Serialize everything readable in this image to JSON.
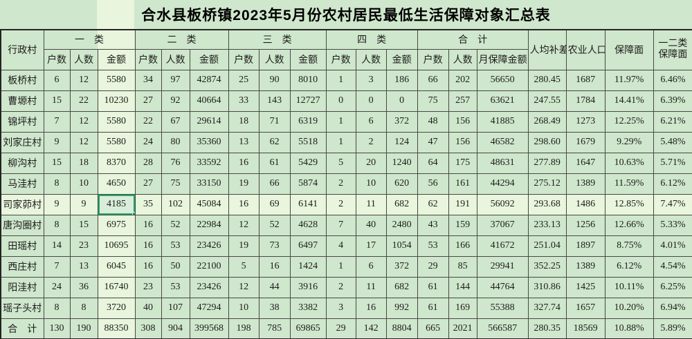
{
  "title": "合水县板桥镇2023年5月份农村居民最低生活保障对象汇总表",
  "header": {
    "village": "行政村",
    "groups": [
      {
        "label": "一　类",
        "cols": [
          "户数",
          "人数",
          "金额"
        ]
      },
      {
        "label": "二　类",
        "cols": [
          "户数",
          "人数",
          "金额"
        ]
      },
      {
        "label": "三　类",
        "cols": [
          "户数",
          "人数",
          "金额"
        ]
      },
      {
        "label": "四　类",
        "cols": [
          "户数",
          "人数",
          "金额"
        ]
      },
      {
        "label": "合　计",
        "cols": [
          "户数",
          "人数",
          "月保障金额"
        ]
      }
    ],
    "singles": [
      "人均补差",
      "农业人口",
      "保障面",
      "一二类\n保障面"
    ]
  },
  "rows": [
    {
      "name": "板桥村",
      "values": [
        "6",
        "12",
        "5580",
        "34",
        "97",
        "42874",
        "25",
        "90",
        "8010",
        "1",
        "3",
        "186",
        "66",
        "202",
        "56650",
        "280.45",
        "1687",
        "11.97%",
        "6.46%"
      ]
    },
    {
      "name": "曹塬村",
      "values": [
        "15",
        "22",
        "10230",
        "27",
        "92",
        "40664",
        "33",
        "143",
        "12727",
        "0",
        "0",
        "0",
        "75",
        "257",
        "63621",
        "247.55",
        "1784",
        "14.41%",
        "6.39%"
      ]
    },
    {
      "name": "锦坪村",
      "values": [
        "7",
        "12",
        "5580",
        "22",
        "67",
        "29614",
        "18",
        "71",
        "6319",
        "1",
        "6",
        "372",
        "48",
        "156",
        "41885",
        "268.49",
        "1273",
        "12.25%",
        "6.21%"
      ]
    },
    {
      "name": "刘家庄村",
      "values": [
        "9",
        "12",
        "5580",
        "24",
        "80",
        "35360",
        "13",
        "62",
        "5518",
        "1",
        "2",
        "124",
        "47",
        "156",
        "46582",
        "298.60",
        "1679",
        "9.29%",
        "5.48%"
      ]
    },
    {
      "name": "柳沟村",
      "values": [
        "15",
        "18",
        "8370",
        "28",
        "76",
        "33592",
        "16",
        "61",
        "5429",
        "5",
        "20",
        "1240",
        "64",
        "175",
        "48631",
        "277.89",
        "1647",
        "10.63%",
        "5.71%"
      ]
    },
    {
      "name": "马洼村",
      "values": [
        "8",
        "10",
        "4650",
        "27",
        "75",
        "33150",
        "19",
        "66",
        "5874",
        "2",
        "10",
        "620",
        "56",
        "161",
        "44294",
        "275.12",
        "1389",
        "11.59%",
        "6.12%"
      ]
    },
    {
      "name": "司家茆村",
      "values": [
        "9",
        "9",
        "4185",
        "35",
        "102",
        "45084",
        "16",
        "69",
        "6141",
        "2",
        "11",
        "682",
        "62",
        "191",
        "56092",
        "293.68",
        "1486",
        "12.85%",
        "7.47%"
      ]
    },
    {
      "name": "唐沟圈村",
      "values": [
        "8",
        "15",
        "6975",
        "16",
        "52",
        "22984",
        "12",
        "52",
        "4628",
        "7",
        "40",
        "2480",
        "43",
        "159",
        "37067",
        "233.13",
        "1256",
        "12.66%",
        "5.33%"
      ]
    },
    {
      "name": "田瑶村",
      "values": [
        "14",
        "23",
        "10695",
        "16",
        "53",
        "23426",
        "19",
        "73",
        "6497",
        "4",
        "17",
        "1054",
        "53",
        "166",
        "41672",
        "251.04",
        "1897",
        "8.75%",
        "4.01%"
      ]
    },
    {
      "name": "西庄村",
      "values": [
        "7",
        "13",
        "6045",
        "16",
        "50",
        "22100",
        "5",
        "16",
        "1424",
        "1",
        "6",
        "372",
        "29",
        "85",
        "29941",
        "352.25",
        "1389",
        "6.12%",
        "4.54%"
      ]
    },
    {
      "name": "阳洼村",
      "values": [
        "24",
        "36",
        "16740",
        "23",
        "53",
        "23426",
        "12",
        "44",
        "3916",
        "2",
        "11",
        "682",
        "61",
        "144",
        "44764",
        "310.86",
        "1425",
        "10.11%",
        "6.25%"
      ]
    },
    {
      "name": "瑶子头村",
      "values": [
        "8",
        "8",
        "3720",
        "40",
        "107",
        "47294",
        "10",
        "38",
        "3382",
        "3",
        "16",
        "992",
        "61",
        "169",
        "55388",
        "327.74",
        "1657",
        "10.20%",
        "6.94%"
      ]
    },
    {
      "name": "合　计",
      "values": [
        "130",
        "190",
        "88350",
        "308",
        "904",
        "399568",
        "198",
        "785",
        "69865",
        "29",
        "142",
        "8804",
        "665",
        "2021",
        "566587",
        "280.35",
        "18569",
        "10.88%",
        "5.89%"
      ]
    }
  ],
  "selection": {
    "row_index": 6,
    "cell_index": 3,
    "value": "4185"
  },
  "colors": {
    "cell_bg": "#cfe7cc",
    "cross_highlight_bg": "#e9f5dc",
    "selected_cell_bg": "#d9edda",
    "selection_border": "#22a567",
    "grid_line": "#474747"
  }
}
